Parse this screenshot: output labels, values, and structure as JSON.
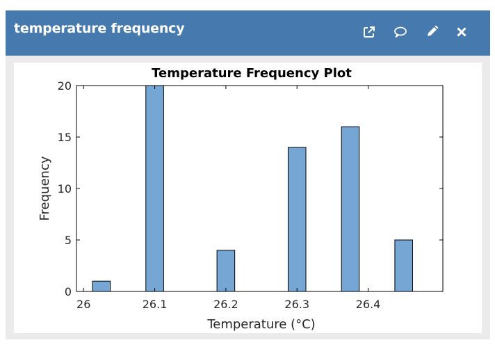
{
  "widget": {
    "title": "temperature frequency",
    "actions": [
      {
        "name": "open-external",
        "icon": "external-link-icon"
      },
      {
        "name": "comment",
        "icon": "comment-icon"
      },
      {
        "name": "edit",
        "icon": "pencil-icon"
      },
      {
        "name": "close",
        "icon": "close-icon"
      }
    ]
  },
  "colors": {
    "header_bg": "#467aae",
    "bar_fill": "#76a6d4",
    "bar_stroke": "#000000"
  },
  "chart_data": {
    "type": "bar",
    "title": "Temperature Frequency Plot",
    "xlabel": "Temperature (°C)",
    "ylabel": "Frequency",
    "xlim": [
      25.99,
      26.505
    ],
    "ylim": [
      0,
      20
    ],
    "bar_width": 0.025,
    "x": [
      26.025,
      26.1,
      26.2,
      26.3,
      26.375,
      26.45
    ],
    "values": [
      1,
      20,
      4,
      14,
      16,
      5
    ],
    "xticks": [
      26,
      26.1,
      26.2,
      26.3,
      26.4
    ],
    "xtick_labels": [
      "26",
      "26.1",
      "26.2",
      "26.3",
      "26.4"
    ],
    "yticks": [
      0,
      5,
      10,
      15,
      20
    ],
    "ytick_labels": [
      "0",
      "5",
      "10",
      "15",
      "20"
    ],
    "grid": false
  }
}
